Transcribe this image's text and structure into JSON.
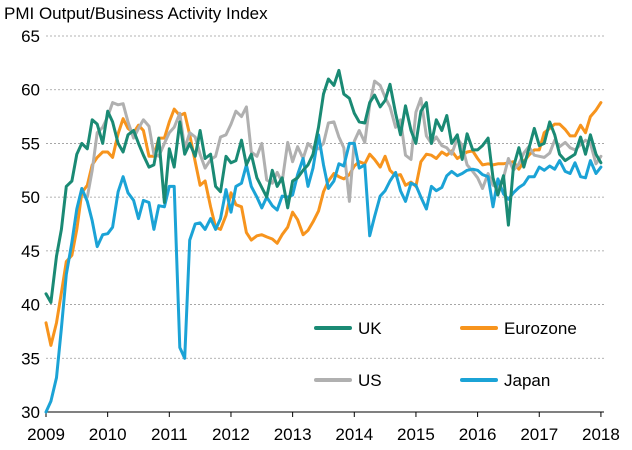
{
  "chart_data": {
    "type": "line",
    "title": "PMI Output/Business Activity Index",
    "xlabel": "",
    "ylabel": "",
    "ylim": [
      30,
      65
    ],
    "yticks": [
      30,
      35,
      40,
      45,
      50,
      55,
      60,
      65
    ],
    "xlim": [
      2009.0,
      2018.05
    ],
    "xticks": [
      2009,
      2010,
      2011,
      2012,
      2013,
      2014,
      2015,
      2016,
      2017,
      2018
    ],
    "grid": "horizontal dashed",
    "legend_position": "bottom-right inside plot, 2 columns",
    "colors": {
      "UK": "#1a8a74",
      "Eurozone": "#f7941d",
      "US": "#b0b0b0",
      "Japan": "#1ba3d6"
    },
    "series": [
      {
        "name": "UK",
        "x": [
          2009.0,
          2009.08,
          2009.17,
          2009.25,
          2009.33,
          2009.42,
          2009.5,
          2009.58,
          2009.67,
          2009.75,
          2009.83,
          2009.92,
          2010.0,
          2010.08,
          2010.17,
          2010.25,
          2010.33,
          2010.42,
          2010.5,
          2010.58,
          2010.67,
          2010.75,
          2010.83,
          2010.92,
          2011.0,
          2011.08,
          2011.17,
          2011.25,
          2011.33,
          2011.42,
          2011.5,
          2011.58,
          2011.67,
          2011.75,
          2011.83,
          2011.92,
          2012.0,
          2012.08,
          2012.17,
          2012.25,
          2012.33,
          2012.42,
          2012.5,
          2012.58,
          2012.67,
          2012.75,
          2012.83,
          2012.92,
          2013.0,
          2013.08,
          2013.17,
          2013.25,
          2013.33,
          2013.42,
          2013.5,
          2013.58,
          2013.67,
          2013.75,
          2013.83,
          2013.92,
          2014.0,
          2014.08,
          2014.17,
          2014.25,
          2014.33,
          2014.42,
          2014.5,
          2014.58,
          2014.67,
          2014.75,
          2014.83,
          2014.92,
          2015.0,
          2015.08,
          2015.17,
          2015.25,
          2015.33,
          2015.42,
          2015.5,
          2015.58,
          2015.67,
          2015.75,
          2015.83,
          2015.92,
          2016.0,
          2016.08,
          2016.17,
          2016.25,
          2016.33,
          2016.42,
          2016.5,
          2016.58,
          2016.67,
          2016.75,
          2016.83,
          2016.92,
          2017.0,
          2017.08,
          2017.17,
          2017.25,
          2017.33,
          2017.42,
          2017.5,
          2017.58,
          2017.67,
          2017.75,
          2017.83,
          2017.92,
          2018.0
        ],
        "values": [
          41.0,
          40.2,
          44.5,
          47.0,
          51.0,
          51.5,
          54.0,
          55.0,
          54.5,
          57.2,
          56.8,
          55.0,
          58.0,
          57.0,
          55.0,
          54.2,
          55.8,
          56.2,
          55.0,
          53.9,
          52.8,
          53.0,
          55.5,
          49.5,
          54.5,
          52.8,
          57.0,
          54.0,
          55.0,
          53.8,
          56.2,
          53.6,
          54.0,
          51.0,
          50.5,
          53.8,
          53.2,
          53.4,
          55.3,
          53.0,
          54.0,
          51.8,
          50.9,
          50.0,
          52.5,
          51.0,
          51.8,
          49.0,
          51.5,
          51.8,
          52.5,
          53.0,
          54.0,
          56.5,
          59.6,
          61.0,
          60.4,
          61.8,
          59.6,
          59.2,
          57.8,
          57.0,
          56.9,
          58.8,
          59.5,
          58.4,
          59.0,
          60.5,
          57.8,
          55.8,
          58.5,
          56.2,
          55.0,
          58.0,
          58.8,
          55.0,
          57.2,
          56.2,
          57.6,
          55.0,
          55.8,
          53.5,
          55.9,
          54.4,
          54.4,
          54.8,
          55.5,
          51.8,
          50.2,
          52.0,
          47.4,
          52.8,
          54.6,
          52.8,
          54.5,
          56.4,
          54.8,
          55.0,
          57.0,
          55.8,
          54.0,
          53.4,
          53.7,
          54.0,
          55.6,
          54.0,
          55.8,
          54.0,
          53.2
        ]
      },
      {
        "name": "Eurozone",
        "x": [
          2009.0,
          2009.08,
          2009.17,
          2009.25,
          2009.33,
          2009.42,
          2009.5,
          2009.58,
          2009.67,
          2009.75,
          2009.83,
          2009.92,
          2010.0,
          2010.08,
          2010.17,
          2010.25,
          2010.33,
          2010.42,
          2010.5,
          2010.58,
          2010.67,
          2010.75,
          2010.83,
          2010.92,
          2011.0,
          2011.08,
          2011.17,
          2011.25,
          2011.33,
          2011.42,
          2011.5,
          2011.58,
          2011.67,
          2011.75,
          2011.83,
          2011.92,
          2012.0,
          2012.08,
          2012.17,
          2012.25,
          2012.33,
          2012.42,
          2012.5,
          2012.58,
          2012.67,
          2012.75,
          2012.83,
          2012.92,
          2013.0,
          2013.08,
          2013.17,
          2013.25,
          2013.33,
          2013.42,
          2013.5,
          2013.58,
          2013.67,
          2013.75,
          2013.83,
          2013.92,
          2014.0,
          2014.08,
          2014.17,
          2014.25,
          2014.33,
          2014.42,
          2014.5,
          2014.58,
          2014.67,
          2014.75,
          2014.83,
          2014.92,
          2015.0,
          2015.08,
          2015.17,
          2015.25,
          2015.33,
          2015.42,
          2015.5,
          2015.58,
          2015.67,
          2015.75,
          2015.83,
          2015.92,
          2016.0,
          2016.08,
          2016.17,
          2016.25,
          2016.33,
          2016.42,
          2016.5,
          2016.58,
          2016.67,
          2016.75,
          2016.83,
          2016.92,
          2017.0,
          2017.08,
          2017.17,
          2017.25,
          2017.33,
          2017.42,
          2017.5,
          2017.58,
          2017.67,
          2017.75,
          2017.83,
          2017.92,
          2018.0
        ],
        "values": [
          38.3,
          36.2,
          38.3,
          41.1,
          44.0,
          44.6,
          47.0,
          50.4,
          51.1,
          53.0,
          53.7,
          54.2,
          54.2,
          53.7,
          55.9,
          57.3,
          56.4,
          56.0,
          56.7,
          56.2,
          53.8,
          53.8,
          55.5,
          55.5,
          57.0,
          58.2,
          57.6,
          57.8,
          55.8,
          53.3,
          51.1,
          51.5,
          49.1,
          47.2,
          47.0,
          48.3,
          50.4,
          49.3,
          49.1,
          46.7,
          46.0,
          46.4,
          46.5,
          46.3,
          46.1,
          45.7,
          46.5,
          47.2,
          48.6,
          47.9,
          46.5,
          46.9,
          47.7,
          48.7,
          50.5,
          51.5,
          52.2,
          51.9,
          51.7,
          52.1,
          52.9,
          53.3,
          53.1,
          54.0,
          53.5,
          52.8,
          53.8,
          52.5,
          52.0,
          52.1,
          51.1,
          51.4,
          51.0,
          53.3,
          54.0,
          53.9,
          53.6,
          54.2,
          53.9,
          54.3,
          53.6,
          53.9,
          54.2,
          54.3,
          53.6,
          53.0,
          53.1,
          53.0,
          53.1,
          53.1,
          53.2,
          53.3,
          52.6,
          53.3,
          53.9,
          54.4,
          54.4,
          56.0,
          56.4,
          56.8,
          56.8,
          56.3,
          55.7,
          55.7,
          56.7,
          56.0,
          57.5,
          58.1,
          58.8
        ]
      },
      {
        "name": "US",
        "x": [
          2009.67,
          2009.75,
          2009.83,
          2009.92,
          2010.0,
          2010.08,
          2010.17,
          2010.25,
          2010.33,
          2010.42,
          2010.5,
          2010.58,
          2010.67,
          2010.75,
          2010.83,
          2010.92,
          2011.0,
          2011.08,
          2011.17,
          2011.25,
          2011.33,
          2011.42,
          2011.5,
          2011.58,
          2011.67,
          2011.75,
          2011.83,
          2011.92,
          2012.0,
          2012.08,
          2012.17,
          2012.25,
          2012.33,
          2012.42,
          2012.5,
          2012.58,
          2012.67,
          2012.75,
          2012.83,
          2012.92,
          2013.0,
          2013.08,
          2013.17,
          2013.25,
          2013.33,
          2013.42,
          2013.5,
          2013.58,
          2013.67,
          2013.75,
          2013.83,
          2013.92,
          2014.0,
          2014.08,
          2014.17,
          2014.25,
          2014.33,
          2014.42,
          2014.5,
          2014.58,
          2014.67,
          2014.75,
          2014.83,
          2014.92,
          2015.0,
          2015.08,
          2015.17,
          2015.25,
          2015.33,
          2015.42,
          2015.5,
          2015.58,
          2015.67,
          2015.75,
          2015.83,
          2015.92,
          2016.0,
          2016.08,
          2016.17,
          2016.25,
          2016.33,
          2016.42,
          2016.5,
          2016.58,
          2016.67,
          2016.75,
          2016.83,
          2016.92,
          2017.0,
          2017.08,
          2017.17,
          2017.25,
          2017.33,
          2017.42,
          2017.5,
          2017.58,
          2017.67,
          2017.75,
          2017.83,
          2017.92,
          2018.0
        ],
        "values": [
          50.0,
          52.5,
          56.0,
          56.5,
          57.5,
          58.8,
          58.6,
          58.7,
          57.0,
          55.5,
          56.4,
          57.2,
          56.6,
          54.0,
          53.8,
          55.0,
          56.0,
          56.5,
          57.8,
          54.5,
          56.0,
          55.6,
          54.0,
          52.7,
          53.5,
          53.8,
          55.6,
          55.8,
          56.8,
          58.0,
          57.5,
          58.4,
          54.2,
          53.8,
          55.0,
          51.6,
          51.3,
          52.3,
          51.4,
          55.1,
          53.3,
          54.7,
          53.6,
          55.0,
          54.5,
          54.5,
          55.0,
          56.9,
          57.0,
          55.6,
          54.6,
          49.6,
          55.2,
          56.2,
          55.1,
          58.6,
          60.8,
          60.4,
          59.3,
          58.4,
          56.5,
          57.2,
          53.9,
          53.5,
          57.9,
          59.2,
          55.7,
          55.0,
          55.6,
          54.8,
          54.6,
          54.0,
          55.5,
          54.8,
          53.0,
          52.4,
          51.8,
          50.8,
          52.2,
          51.1,
          50.9,
          51.8,
          53.6,
          52.5,
          53.1,
          54.1,
          54.7,
          53.9,
          53.8,
          53.7,
          54.1,
          55.3,
          54.7,
          55.1,
          54.6,
          54.4,
          54.9,
          55.3,
          55.0,
          53.1,
          53.8
        ]
      },
      {
        "name": "Japan",
        "x": [
          2009.0,
          2009.08,
          2009.17,
          2009.25,
          2009.33,
          2009.42,
          2009.5,
          2009.58,
          2009.67,
          2009.75,
          2009.83,
          2009.92,
          2010.0,
          2010.08,
          2010.17,
          2010.25,
          2010.33,
          2010.42,
          2010.5,
          2010.58,
          2010.67,
          2010.75,
          2010.83,
          2010.92,
          2011.0,
          2011.08,
          2011.17,
          2011.25,
          2011.33,
          2011.42,
          2011.5,
          2011.58,
          2011.67,
          2011.75,
          2011.83,
          2011.92,
          2012.0,
          2012.08,
          2012.17,
          2012.25,
          2012.33,
          2012.42,
          2012.5,
          2012.58,
          2012.67,
          2012.75,
          2012.83,
          2012.92,
          2013.0,
          2013.08,
          2013.17,
          2013.25,
          2013.33,
          2013.42,
          2013.5,
          2013.58,
          2013.67,
          2013.75,
          2013.83,
          2013.92,
          2014.0,
          2014.08,
          2014.17,
          2014.25,
          2014.33,
          2014.42,
          2014.5,
          2014.58,
          2014.67,
          2014.75,
          2014.83,
          2014.92,
          2015.0,
          2015.08,
          2015.17,
          2015.25,
          2015.33,
          2015.42,
          2015.5,
          2015.58,
          2015.67,
          2015.75,
          2015.83,
          2015.92,
          2016.0,
          2016.08,
          2016.17,
          2016.25,
          2016.33,
          2016.42,
          2016.5,
          2016.58,
          2016.67,
          2016.75,
          2016.83,
          2016.92,
          2017.0,
          2017.08,
          2017.17,
          2017.25,
          2017.33,
          2017.42,
          2017.5,
          2017.58,
          2017.67,
          2017.75,
          2017.83,
          2017.92,
          2018.0
        ],
        "values": [
          30.0,
          31.0,
          33.2,
          37.8,
          42.8,
          45.8,
          48.9,
          50.8,
          49.6,
          47.8,
          45.4,
          46.5,
          46.6,
          47.2,
          50.5,
          51.9,
          50.4,
          49.7,
          48.0,
          49.7,
          49.5,
          47.0,
          49.2,
          49.1,
          51.0,
          51.0,
          36.0,
          35.0,
          46.0,
          47.5,
          47.6,
          47.0,
          48.0,
          47.0,
          48.0,
          50.7,
          48.6,
          51.0,
          51.3,
          53.0,
          51.0,
          50.0,
          49.0,
          50.0,
          49.2,
          48.8,
          50.1,
          50.0,
          50.2,
          52.1,
          53.6,
          51.0,
          52.7,
          55.8,
          53.0,
          50.8,
          51.5,
          53.1,
          52.9,
          55.0,
          55.0,
          52.7,
          53.0,
          46.4,
          48.2,
          50.1,
          50.6,
          51.5,
          52.3,
          50.6,
          49.6,
          51.3,
          51.1,
          50.0,
          48.9,
          51.0,
          50.6,
          50.9,
          52.0,
          52.4,
          52.0,
          52.2,
          52.5,
          52.6,
          52.5,
          52.1,
          51.9,
          49.1,
          51.7,
          50.3,
          49.8,
          50.4,
          50.9,
          51.2,
          51.9,
          51.9,
          52.8,
          52.5,
          52.9,
          52.6,
          53.4,
          52.4,
          52.2,
          53.2,
          51.9,
          51.8,
          53.4,
          52.2,
          52.8
        ]
      }
    ]
  },
  "legend": [
    {
      "key": "uk",
      "label": "UK"
    },
    {
      "key": "eurozone",
      "label": "Eurozone"
    },
    {
      "key": "us",
      "label": "US"
    },
    {
      "key": "japan",
      "label": "Japan"
    }
  ]
}
